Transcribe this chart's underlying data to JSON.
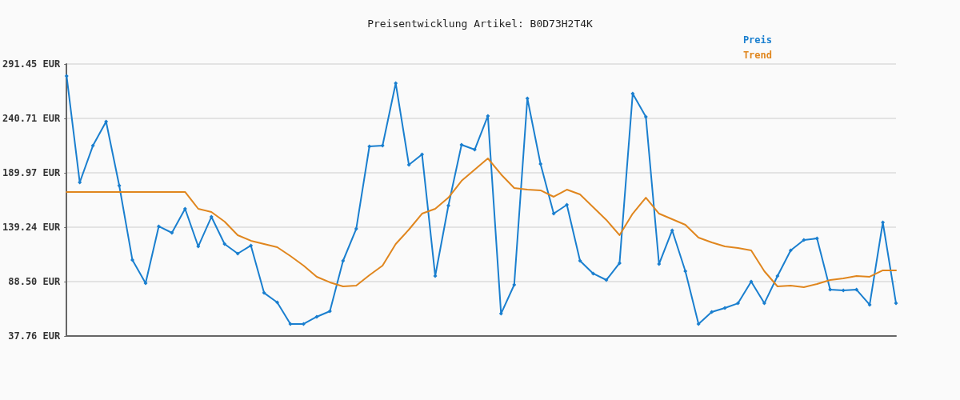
{
  "chart_data": {
    "type": "line",
    "title": "Preisentwicklung Artikel: B0D73H2T4K",
    "categories": [
      null,
      null,
      null,
      null,
      null,
      null,
      null,
      null,
      null,
      null,
      null,
      null,
      null,
      null,
      null,
      null,
      null,
      null,
      null,
      null,
      null,
      null,
      null,
      null,
      null,
      null,
      null,
      null,
      null,
      null,
      null,
      null,
      null,
      null,
      null,
      null,
      null,
      null,
      null,
      null,
      null,
      null,
      null,
      null,
      null,
      null,
      null,
      null,
      null,
      null,
      null,
      null,
      null,
      null,
      null,
      null,
      null,
      null,
      null,
      null,
      null,
      null,
      null,
      null
    ],
    "series": [
      {
        "name": "Preis",
        "color": "#1a7fcf",
        "marker": "diamond",
        "values": [
          280.3,
          181.0,
          215.3,
          237.7,
          178.0,
          108.6,
          87.0,
          140.0,
          134.0,
          156.4,
          121.3,
          148.9,
          123.6,
          114.6,
          122.1,
          78.0,
          69.1,
          49.0,
          49.0,
          55.7,
          60.9,
          107.9,
          137.7,
          214.6,
          215.3,
          273.5,
          197.4,
          207.1,
          93.7,
          159.4,
          216.1,
          211.6,
          243.0,
          58.6,
          85.5,
          259.4,
          198.2,
          151.9,
          160.1,
          107.9,
          96.0,
          90.0,
          105.7,
          263.8,
          242.2,
          104.9,
          136.3,
          98.2,
          49.0,
          60.1,
          63.9,
          68.3,
          88.5,
          68.3,
          93.7,
          117.6,
          127.3,
          128.8,
          81.0,
          80.3,
          81.0,
          66.9,
          143.7,
          68.3
        ]
      },
      {
        "name": "Trend",
        "color": "#e0861e",
        "marker": "none",
        "values": [
          172.1,
          172.1,
          172.1,
          172.1,
          172.1,
          172.1,
          172.1,
          172.1,
          172.1,
          172.1,
          156.4,
          153.4,
          144.5,
          131.8,
          126.6,
          123.6,
          120.6,
          112.4,
          103.4,
          93.0,
          87.8,
          84.0,
          84.8,
          94.5,
          103.4,
          123.6,
          137.0,
          151.9,
          156.4,
          166.8,
          182.5,
          193.0,
          203.4,
          188.5,
          175.8,
          174.3,
          173.6,
          167.6,
          174.3,
          169.8,
          157.9,
          146.0,
          131.8,
          151.9,
          166.8,
          151.9,
          146.7,
          141.5,
          129.5,
          125.1,
          121.3,
          119.8,
          117.6,
          98.2,
          84.0,
          84.8,
          83.3,
          86.3,
          90.0,
          91.5,
          93.7,
          93.0,
          99.0,
          99.0
        ]
      }
    ],
    "ylim": [
      37.76,
      291.45
    ],
    "yticks": [
      {
        "value": 37.76,
        "label": "37.76 EUR"
      },
      {
        "value": 88.5,
        "label": "88.50 EUR"
      },
      {
        "value": 139.24,
        "label": "139.24 EUR"
      },
      {
        "value": 189.97,
        "label": "189.97 EUR"
      },
      {
        "value": 240.71,
        "label": "240.71 EUR"
      },
      {
        "value": 291.45,
        "label": "291.45 EUR"
      }
    ],
    "grid": "y",
    "legend": "top right",
    "line_style": "solid"
  }
}
